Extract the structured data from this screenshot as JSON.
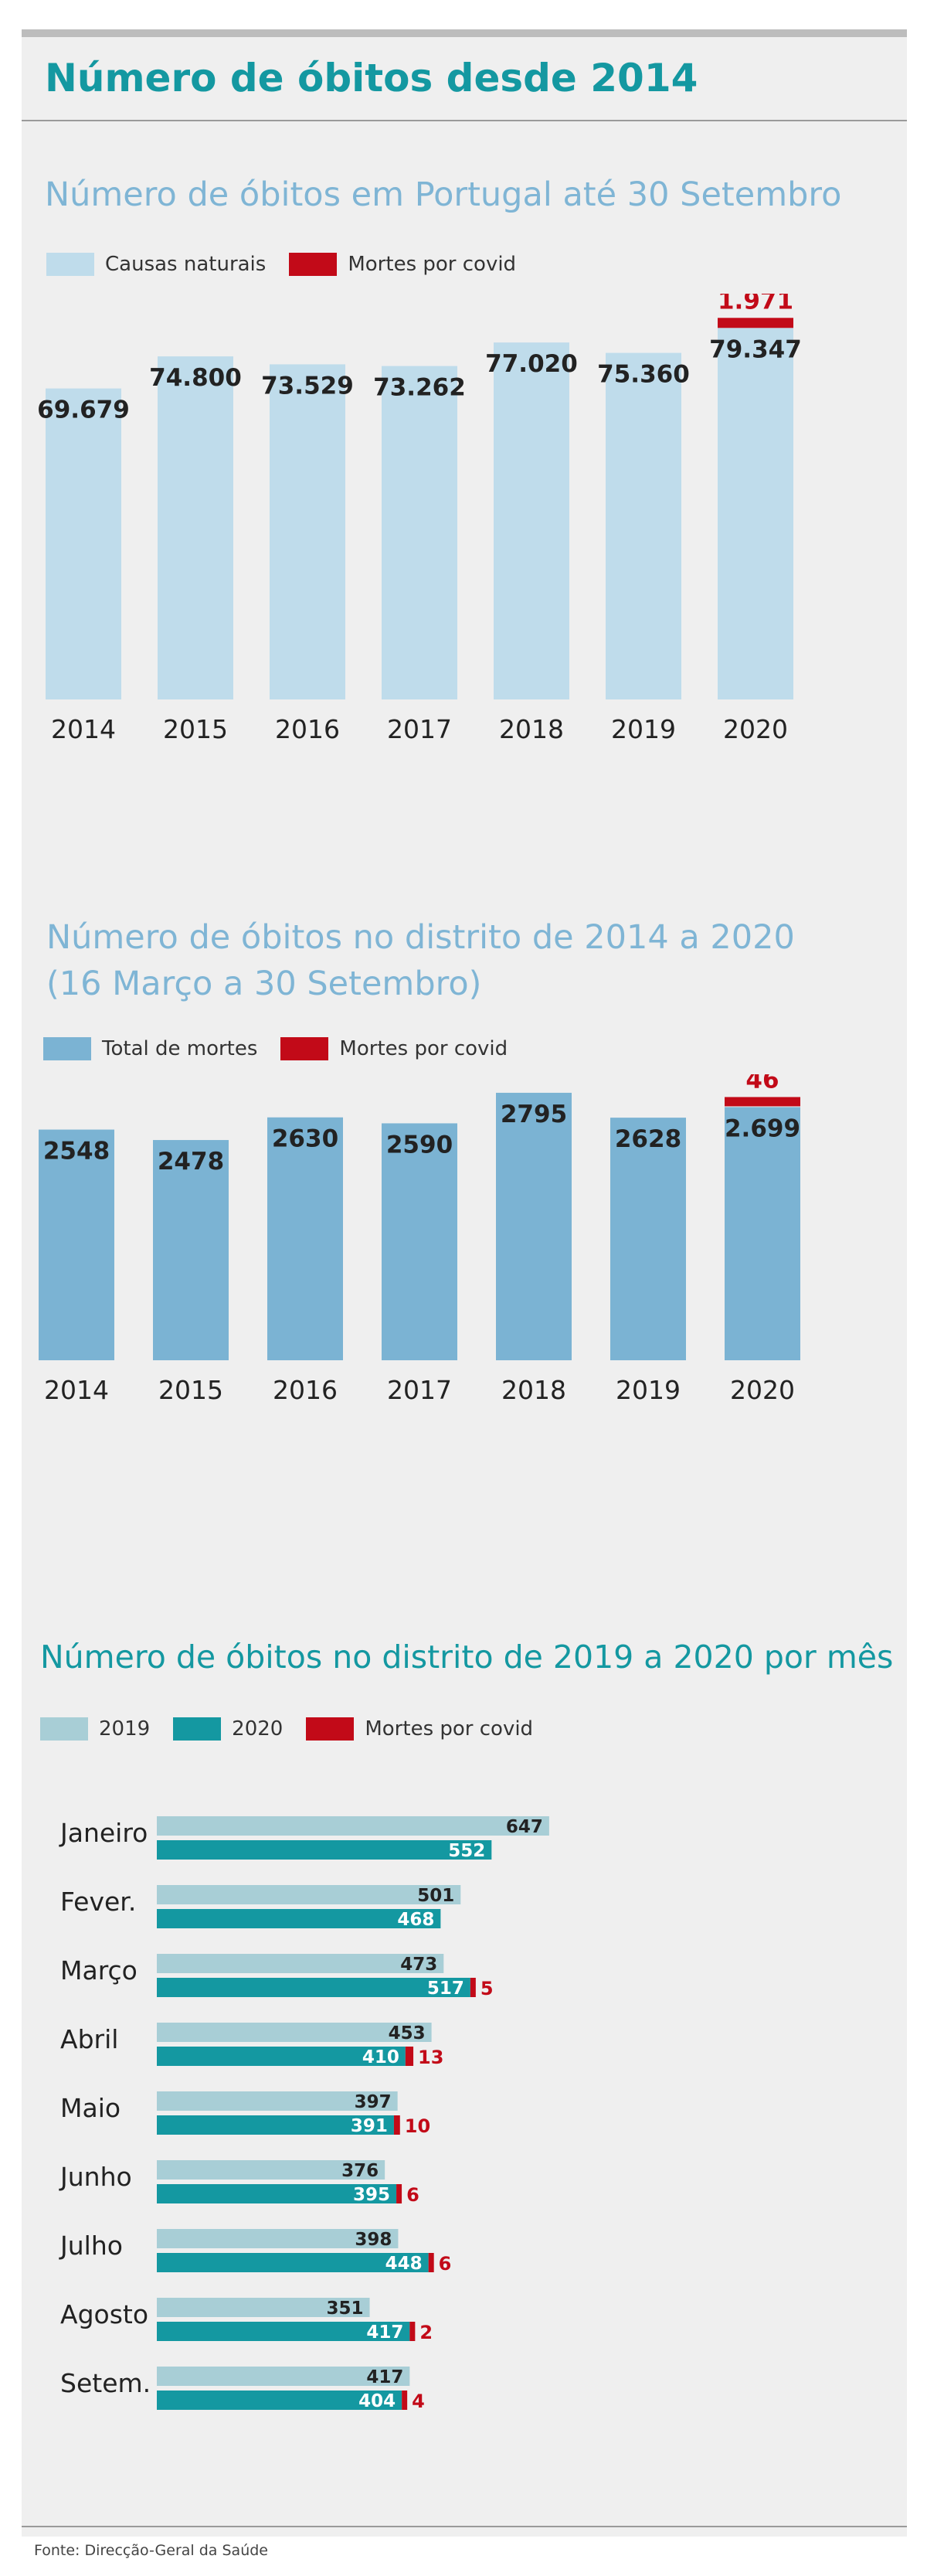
{
  "header": {
    "title": "Número de óbitos desde 2014"
  },
  "colors": {
    "natural": "#bfdceb",
    "total": "#7bb3d3",
    "covid": "#c20a18",
    "y2019": "#a8ced6",
    "y2020": "#1498a1"
  },
  "chart_data": [
    {
      "type": "bar",
      "title": "Número de óbitos em Portugal até 30 Setembro",
      "legend": [
        "Causas naturais",
        "Mortes por covid"
      ],
      "categories": [
        "2014",
        "2015",
        "2016",
        "2017",
        "2018",
        "2019",
        "2020"
      ],
      "series": [
        {
          "name": "Causas naturais",
          "values": [
            69679,
            74800,
            73529,
            73262,
            77020,
            75360,
            79347
          ],
          "labels": [
            "69.679",
            "74.800",
            "73.529",
            "73.262",
            "77.020",
            "75.360",
            "79.347"
          ]
        },
        {
          "name": "Mortes por covid",
          "values": [
            0,
            0,
            0,
            0,
            0,
            0,
            1971
          ],
          "labels": [
            "",
            "",
            "",
            "",
            "",
            "",
            "1.971"
          ]
        }
      ],
      "stacked": true
    },
    {
      "type": "bar",
      "title": "Número de óbitos no distrito de 2014 a 2020",
      "subtitle": "(16 Março a 30 Setembro)",
      "legend": [
        "Total de mortes",
        "Mortes por covid"
      ],
      "categories": [
        "2014",
        "2015",
        "2016",
        "2017",
        "2018",
        "2019",
        "2020"
      ],
      "series": [
        {
          "name": "Total de mortes",
          "values": [
            2548,
            2478,
            2630,
            2590,
            2795,
            2628,
            2699
          ],
          "labels": [
            "2548",
            "2478",
            "2630",
            "2590",
            "2795",
            "2628",
            "2.699"
          ]
        },
        {
          "name": "Mortes por covid",
          "values": [
            0,
            0,
            0,
            0,
            0,
            0,
            46
          ],
          "labels": [
            "",
            "",
            "",
            "",
            "",
            "",
            "46"
          ]
        }
      ],
      "stacked": true
    },
    {
      "type": "bar",
      "orientation": "horizontal",
      "title": "Número de óbitos no distrito de 2019 a 2020 por mês",
      "legend": [
        "2019",
        "2020",
        "Mortes por covid"
      ],
      "categories": [
        "Janeiro",
        "Fever.",
        "Março",
        "Abril",
        "Maio",
        "Junho",
        "Julho",
        "Agosto",
        "Setem."
      ],
      "series": [
        {
          "name": "2019",
          "values": [
            647,
            501,
            473,
            453,
            397,
            376,
            398,
            351,
            417
          ]
        },
        {
          "name": "2020",
          "values": [
            552,
            468,
            517,
            410,
            391,
            395,
            448,
            417,
            404
          ]
        },
        {
          "name": "Mortes por covid",
          "values": [
            0,
            0,
            5,
            13,
            10,
            6,
            6,
            2,
            4
          ]
        }
      ]
    }
  ],
  "footer": {
    "source": "Fonte: Direcção-Geral da Saúde"
  }
}
